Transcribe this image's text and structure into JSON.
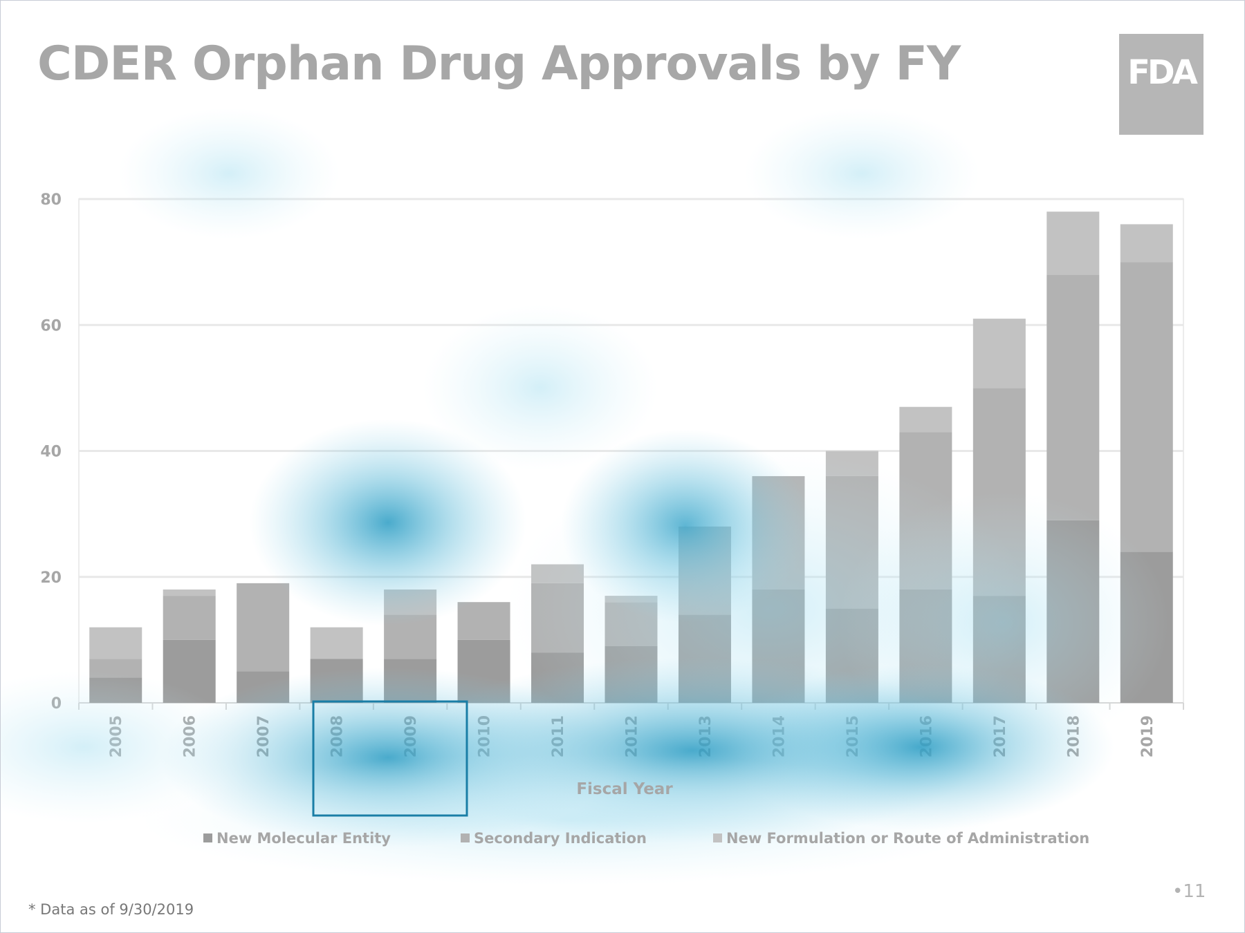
{
  "slide": {
    "title": "CDER Orphan Drug Approvals by FY",
    "logo_text": "FDA",
    "footnote": "* Data as of 9/30/2019",
    "page_number": "•11"
  },
  "chart_data": {
    "type": "bar",
    "stacked": true,
    "title": "CDER Orphan Drug Approvals by FY",
    "xlabel": "Fiscal Year",
    "ylabel": "",
    "ylim": [
      0,
      80
    ],
    "yticks": [
      0,
      20,
      40,
      60,
      80
    ],
    "grid": true,
    "legend_position": "bottom",
    "categories": [
      "2005",
      "2006",
      "2007",
      "2008",
      "2009",
      "2010",
      "2011",
      "2012",
      "2013",
      "2014",
      "2015",
      "2016",
      "2017",
      "2018",
      "2019"
    ],
    "series": [
      {
        "name": "New Molecular Entity",
        "color": "#9c9c9c",
        "values": [
          4,
          10,
          5,
          7,
          7,
          10,
          8,
          9,
          14,
          18,
          15,
          18,
          17,
          29,
          24
        ]
      },
      {
        "name": "Secondary Indication",
        "color": "#b2b2b2",
        "values": [
          3,
          7,
          14,
          0,
          7,
          6,
          11,
          7,
          14,
          18,
          21,
          25,
          33,
          39,
          46
        ]
      },
      {
        "name": "New Formulation or Route of Administration",
        "color": "#c2c2c2",
        "values": [
          5,
          1,
          0,
          5,
          4,
          0,
          3,
          1,
          0,
          0,
          4,
          4,
          11,
          10,
          6
        ]
      }
    ],
    "totals": [
      12,
      18,
      19,
      12,
      18,
      16,
      22,
      17,
      28,
      36,
      40,
      47,
      61,
      78,
      76
    ]
  }
}
